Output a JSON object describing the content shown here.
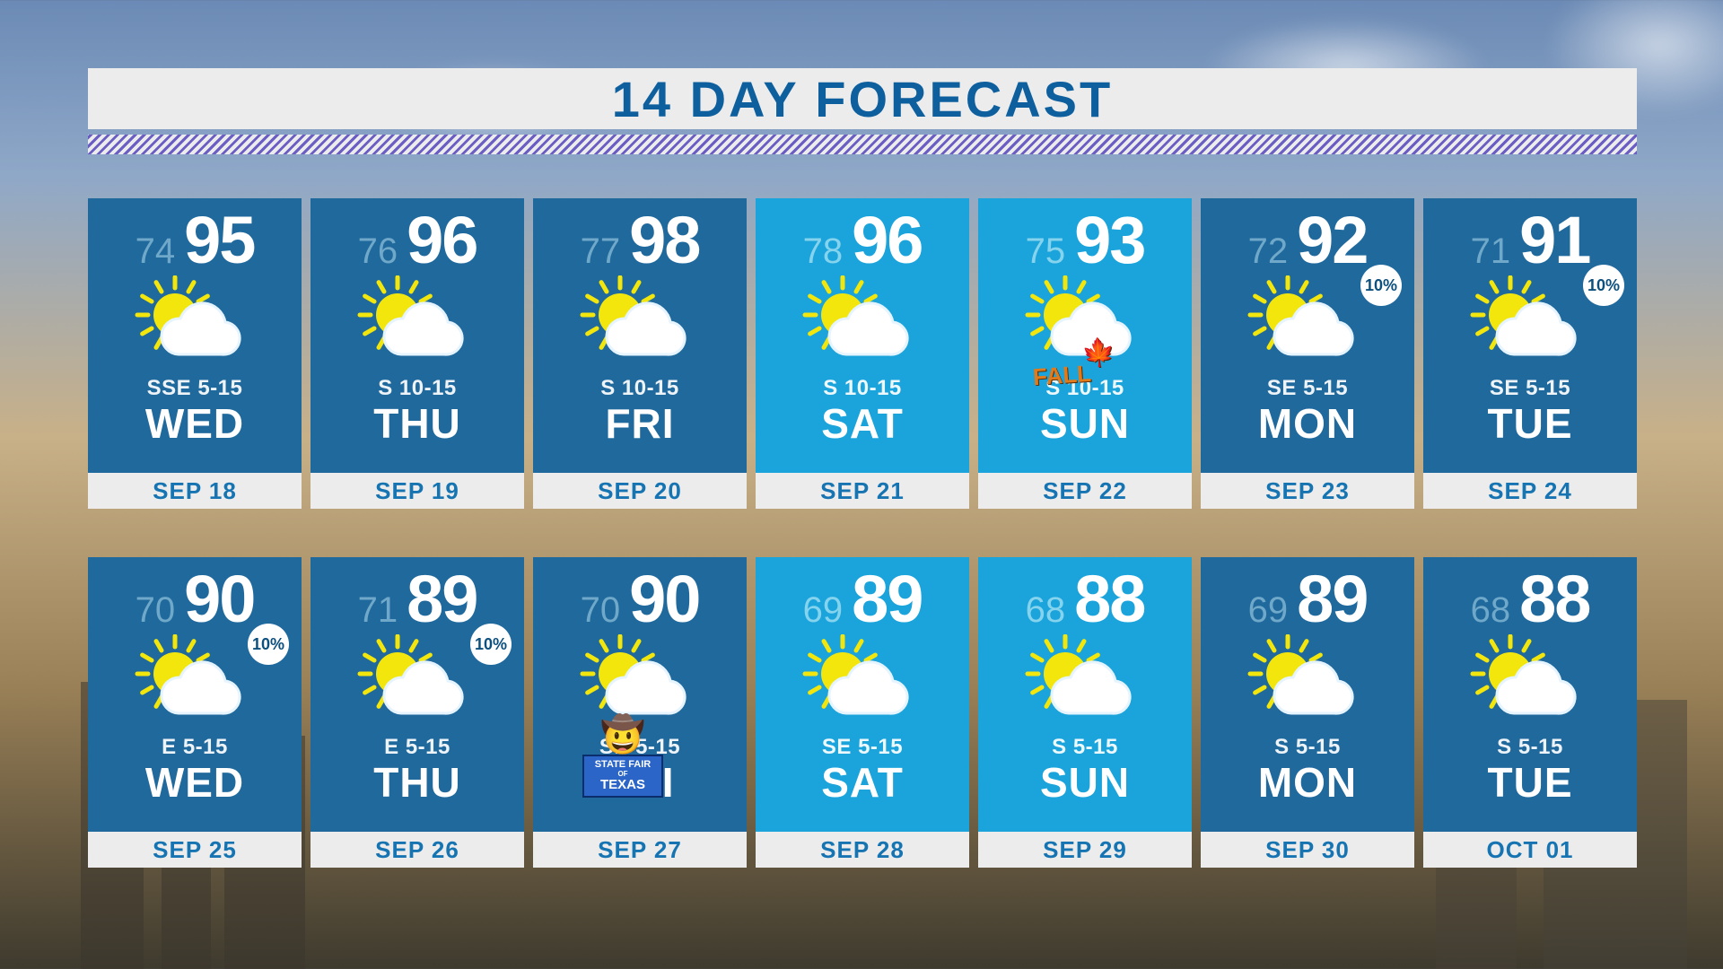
{
  "title": "14 DAY FORECAST",
  "colors": {
    "card_dark": "#20699d",
    "card_bright": "#1aa4db",
    "low_dark": "#6fa8c9",
    "low_bright": "#86d3ee",
    "title_text": "#0e5f9e",
    "date_text": "#1574b1",
    "strip_bg": "#ececec",
    "sun": "#f2e60d",
    "cloud_outline": "#e6f4ff",
    "cloud_fill": "#ffffff"
  },
  "layout": {
    "columns": 7,
    "rows": 2,
    "weekend_cols": [
      3,
      4
    ]
  },
  "days": [
    {
      "low": 74,
      "high": 95,
      "wind": "SSE 5-15",
      "day": "WED",
      "date": "SEP 18",
      "chance": null,
      "special": null
    },
    {
      "low": 76,
      "high": 96,
      "wind": "S 10-15",
      "day": "THU",
      "date": "SEP 19",
      "chance": null,
      "special": null
    },
    {
      "low": 77,
      "high": 98,
      "wind": "S 10-15",
      "day": "FRI",
      "date": "SEP 20",
      "chance": null,
      "special": null
    },
    {
      "low": 78,
      "high": 96,
      "wind": "S 10-15",
      "day": "SAT",
      "date": "SEP 21",
      "chance": null,
      "special": null
    },
    {
      "low": 75,
      "high": 93,
      "wind": "S 10-15",
      "day": "SUN",
      "date": "SEP 22",
      "chance": null,
      "special": "fall"
    },
    {
      "low": 72,
      "high": 92,
      "wind": "SE 5-15",
      "day": "MON",
      "date": "SEP 23",
      "chance": "10%",
      "special": null
    },
    {
      "low": 71,
      "high": 91,
      "wind": "SE 5-15",
      "day": "TUE",
      "date": "SEP 24",
      "chance": "10%",
      "special": null
    },
    {
      "low": 70,
      "high": 90,
      "wind": "E 5-15",
      "day": "WED",
      "date": "SEP 25",
      "chance": "10%",
      "special": null
    },
    {
      "low": 71,
      "high": 89,
      "wind": "E 5-15",
      "day": "THU",
      "date": "SEP 26",
      "chance": "10%",
      "special": null
    },
    {
      "low": 70,
      "high": 90,
      "wind": "SE 5-15",
      "day": "FRI",
      "date": "SEP 27",
      "chance": null,
      "special": "bigtex"
    },
    {
      "low": 69,
      "high": 89,
      "wind": "SE 5-15",
      "day": "SAT",
      "date": "SEP 28",
      "chance": null,
      "special": null
    },
    {
      "low": 68,
      "high": 88,
      "wind": "S 5-15",
      "day": "SUN",
      "date": "SEP 29",
      "chance": null,
      "special": null
    },
    {
      "low": 69,
      "high": 89,
      "wind": "S 5-15",
      "day": "MON",
      "date": "SEP 30",
      "chance": null,
      "special": null
    },
    {
      "low": 68,
      "high": 88,
      "wind": "S 5-15",
      "day": "TUE",
      "date": "OCT 01",
      "chance": null,
      "special": null
    }
  ],
  "bigtex": {
    "line1": "STATE FAIR",
    "of": "OF",
    "tx": "TEXAS"
  },
  "fall_label": "FALL"
}
